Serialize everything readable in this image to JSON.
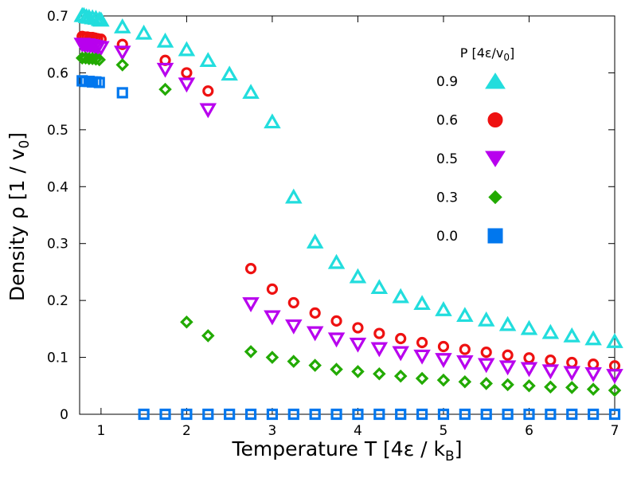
{
  "chart_data": {
    "type": "scatter",
    "xlabel": "Temperature T [4ε / k",
    "xlabel_sub": "B",
    "xlabel_end": "]",
    "ylabel": "Density ρ [1 / v",
    "ylabel_sub": "0",
    "ylabel_end": "]",
    "xlim": [
      0.75,
      7.0
    ],
    "ylim": [
      0.0,
      0.7
    ],
    "xticks": [
      1,
      2,
      3,
      4,
      5,
      6,
      7
    ],
    "yticks": [
      0,
      0.1,
      0.2,
      0.3,
      0.4,
      0.5,
      0.6,
      0.7
    ],
    "ytick_labels": [
      "0",
      "0.1",
      "0.2",
      "0.3",
      "0.4",
      "0.5",
      "0.6",
      "0.7"
    ],
    "legend_title": "P [4ε/v",
    "legend_title_sub": "0",
    "legend_title_end": "]",
    "legend_position": "top-right",
    "series": [
      {
        "name": "0.9",
        "marker": "triangle-up",
        "color": "#22dddd",
        "x": [
          0.78,
          0.8,
          0.83,
          0.86,
          0.9,
          0.94,
          0.98,
          1.0,
          1.25,
          1.5,
          1.75,
          2.0,
          2.25,
          2.5,
          2.75,
          3.0,
          3.25,
          3.5,
          3.75,
          4.0,
          4.25,
          4.5,
          4.75,
          5.0,
          5.25,
          5.5,
          5.75,
          6.0,
          6.25,
          6.5,
          6.75,
          7.0
        ],
        "y": [
          0.7,
          0.7,
          0.698,
          0.697,
          0.696,
          0.695,
          0.693,
          0.692,
          0.68,
          0.669,
          0.655,
          0.64,
          0.621,
          0.597,
          0.565,
          0.513,
          0.381,
          0.302,
          0.266,
          0.241,
          0.222,
          0.206,
          0.194,
          0.183,
          0.173,
          0.165,
          0.157,
          0.15,
          0.143,
          0.137,
          0.132,
          0.127
        ]
      },
      {
        "name": "0.6",
        "marker": "circle",
        "color": "#ee1111",
        "x": [
          0.78,
          0.81,
          0.84,
          0.87,
          0.9,
          0.93,
          0.96,
          1.0,
          1.25,
          1.75,
          2.0,
          2.25,
          2.75,
          3.0,
          3.25,
          3.5,
          3.75,
          4.0,
          4.25,
          4.5,
          4.75,
          5.0,
          5.25,
          5.5,
          5.75,
          6.0,
          6.25,
          6.5,
          6.75,
          7.0
        ],
        "y": [
          0.664,
          0.663,
          0.663,
          0.662,
          0.662,
          0.661,
          0.66,
          0.659,
          0.65,
          0.622,
          0.6,
          0.568,
          0.256,
          0.22,
          0.196,
          0.178,
          0.164,
          0.152,
          0.142,
          0.133,
          0.126,
          0.119,
          0.114,
          0.109,
          0.104,
          0.099,
          0.095,
          0.091,
          0.088,
          0.085
        ]
      },
      {
        "name": "0.5",
        "marker": "triangle-down",
        "color": "#b800ee",
        "x": [
          0.78,
          0.81,
          0.84,
          0.87,
          0.9,
          0.93,
          0.96,
          1.0,
          1.25,
          1.75,
          2.0,
          2.25,
          2.75,
          3.0,
          3.25,
          3.5,
          3.75,
          4.0,
          4.25,
          4.5,
          4.75,
          5.0,
          5.25,
          5.5,
          5.75,
          6.0,
          6.25,
          6.5,
          6.75,
          7.0
        ],
        "y": [
          0.651,
          0.65,
          0.65,
          0.649,
          0.648,
          0.647,
          0.646,
          0.645,
          0.637,
          0.607,
          0.581,
          0.536,
          0.195,
          0.172,
          0.156,
          0.144,
          0.133,
          0.124,
          0.116,
          0.109,
          0.103,
          0.097,
          0.093,
          0.088,
          0.084,
          0.081,
          0.077,
          0.074,
          0.072,
          0.069
        ]
      },
      {
        "name": "0.3",
        "marker": "diamond",
        "color": "#22aa00",
        "x": [
          0.78,
          0.82,
          0.86,
          0.9,
          0.94,
          0.98,
          1.25,
          1.75,
          2.0,
          2.25,
          2.75,
          3.0,
          3.25,
          3.5,
          3.75,
          4.0,
          4.25,
          4.5,
          4.75,
          5.0,
          5.25,
          5.5,
          5.75,
          6.0,
          6.25,
          6.5,
          6.75,
          7.0
        ],
        "y": [
          0.626,
          0.626,
          0.625,
          0.625,
          0.624,
          0.623,
          0.614,
          0.571,
          0.162,
          0.138,
          0.11,
          0.1,
          0.093,
          0.086,
          0.079,
          0.075,
          0.071,
          0.067,
          0.063,
          0.06,
          0.057,
          0.054,
          0.052,
          0.05,
          0.048,
          0.047,
          0.044,
          0.042
        ]
      },
      {
        "name": "0.0",
        "marker": "square",
        "color": "#0077ee",
        "x": [
          0.78,
          0.82,
          0.86,
          0.9,
          0.94,
          0.98,
          1.25,
          1.5,
          1.75,
          2.0,
          2.25,
          2.5,
          2.75,
          3.0,
          3.25,
          3.5,
          3.75,
          4.0,
          4.25,
          4.5,
          4.75,
          5.0,
          5.25,
          5.5,
          5.75,
          6.0,
          6.25,
          6.5,
          6.75,
          7.0
        ],
        "y": [
          0.586,
          0.585,
          0.585,
          0.584,
          0.584,
          0.583,
          0.565,
          0.0,
          0.0,
          0.0,
          0.0,
          0.0,
          0.0,
          0.0,
          0.0,
          0.0,
          0.0,
          0.0,
          0.0,
          0.0,
          0.0,
          0.0,
          0.0,
          0.0,
          0.0,
          0.0,
          0.0,
          0.0,
          0.0,
          0.0
        ]
      }
    ]
  }
}
